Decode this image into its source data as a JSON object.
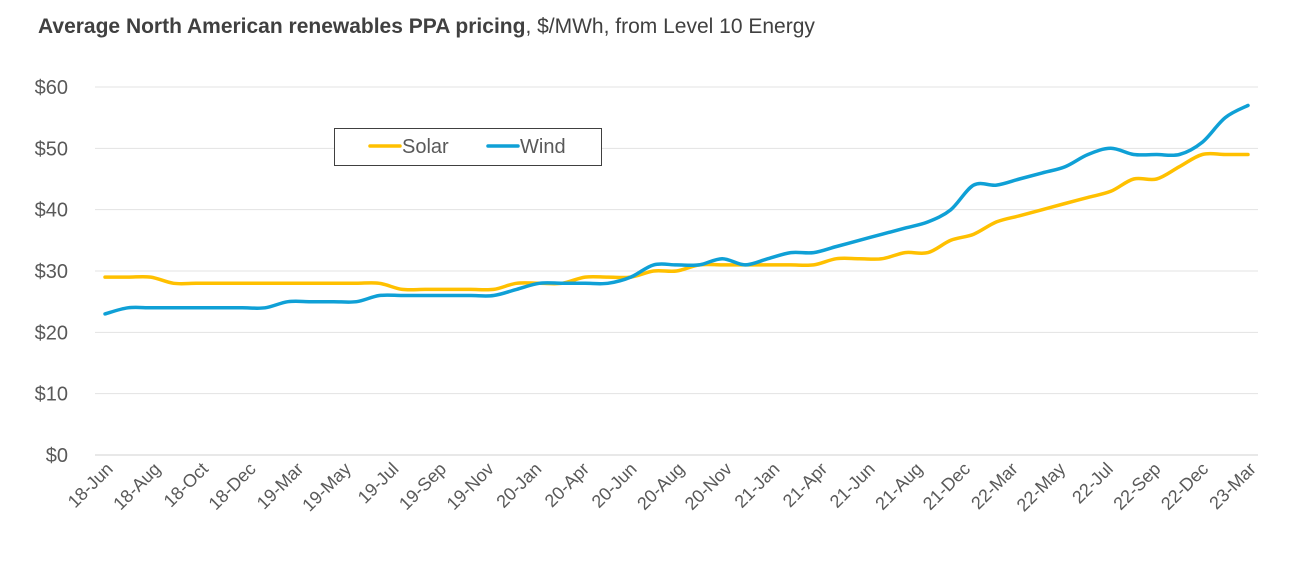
{
  "title_bold": "Average North American renewables PPA pricing",
  "title_rest": ", $/MWh, from Level 10 Energy",
  "chart_data": {
    "type": "line",
    "title": "Average North American renewables PPA pricing, $/MWh, from Level 10 Energy",
    "xlabel": "",
    "ylabel": "",
    "ylim": [
      0,
      60
    ],
    "y_ticks": [
      "$0",
      "$10",
      "$20",
      "$30",
      "$40",
      "$50",
      "$60"
    ],
    "x_tick_labels": [
      "18-Jun",
      "18-Aug",
      "18-Oct",
      "18-Dec",
      "19-Mar",
      "19-May",
      "19-Jul",
      "19-Sep",
      "19-Nov",
      "20-Jan",
      "20-Apr",
      "20-Jun",
      "20-Aug",
      "20-Nov",
      "21-Jan",
      "21-Apr",
      "21-Jun",
      "21-Aug",
      "21-Dec",
      "22-Mar",
      "22-May",
      "22-Jul",
      "22-Sep",
      "22-Dec",
      "23-Mar"
    ],
    "grid": true,
    "legend_position": "top-left",
    "series": [
      {
        "name": "Solar",
        "color": "#FFC000",
        "values": [
          29,
          29,
          29,
          28,
          28,
          28,
          28,
          28,
          28,
          28,
          28,
          28,
          28,
          27,
          27,
          27,
          27,
          27,
          28,
          28,
          28,
          29,
          29,
          29,
          30,
          30,
          31,
          31,
          31,
          31,
          31,
          31,
          32,
          32,
          32,
          33,
          33,
          35,
          36,
          38,
          39,
          40,
          41,
          42,
          43,
          45,
          45,
          47,
          49,
          49,
          49
        ]
      },
      {
        "name": "Wind",
        "color": "#0FA0D6",
        "values": [
          23,
          24,
          24,
          24,
          24,
          24,
          24,
          24,
          25,
          25,
          25,
          25,
          26,
          26,
          26,
          26,
          26,
          26,
          27,
          28,
          28,
          28,
          28,
          29,
          31,
          31,
          31,
          32,
          31,
          32,
          33,
          33,
          34,
          35,
          36,
          37,
          38,
          40,
          44,
          44,
          45,
          46,
          47,
          49,
          50,
          49,
          49,
          49,
          51,
          55,
          57
        ]
      }
    ]
  }
}
